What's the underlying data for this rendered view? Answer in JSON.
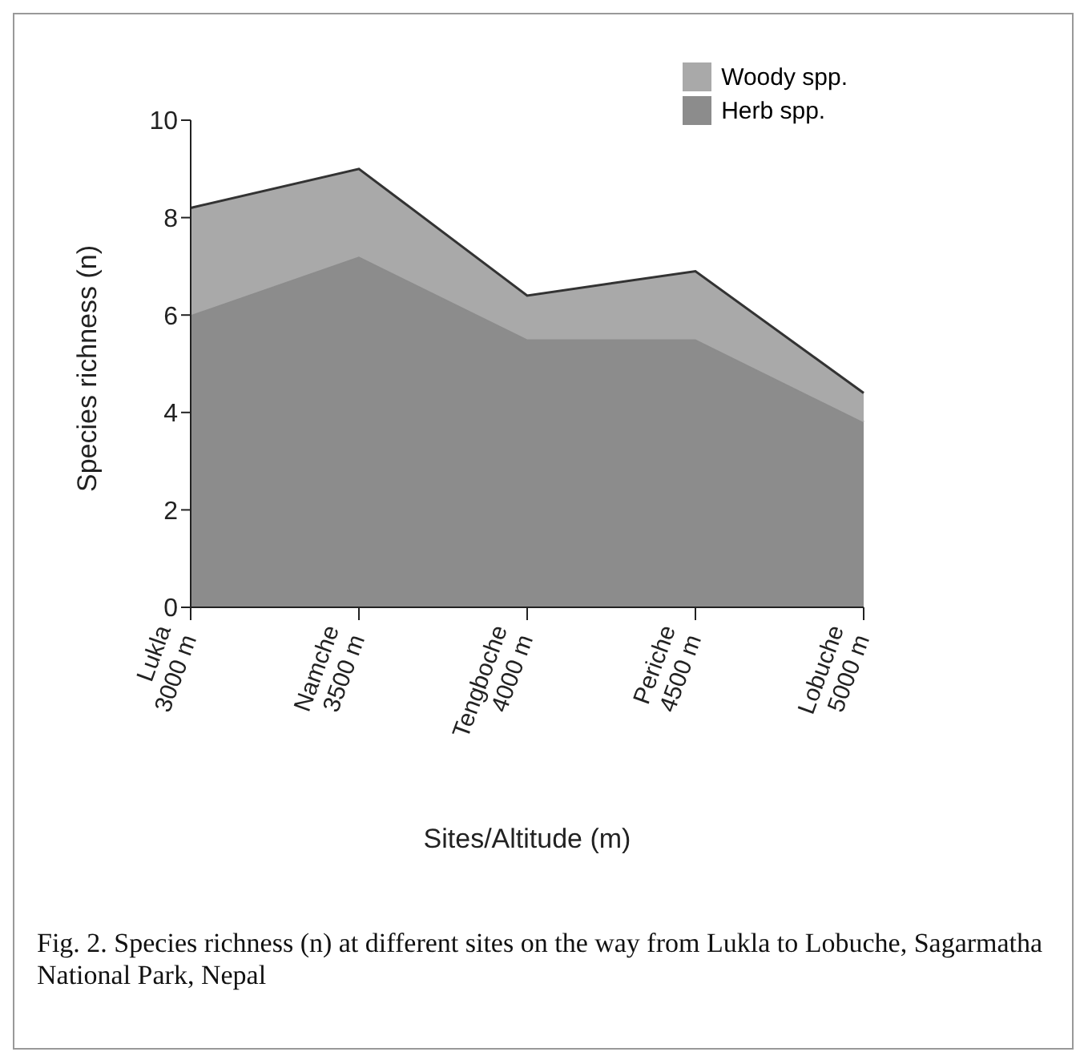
{
  "chart_data": {
    "type": "area",
    "stacked": true,
    "xlabel": "Sites/Altitude (m)",
    "ylabel": "Species richness (n)",
    "categories": [
      "Lukla\n3000 m",
      "Namche\n3500 m",
      "Tengboche\n4000 m",
      "Periche\n4500 m",
      "Lobuche\n5000 m"
    ],
    "series": [
      {
        "name": "Herb spp.",
        "color": "#8c8c8c",
        "values": [
          6,
          7.2,
          5.5,
          5.5,
          3.8
        ]
      },
      {
        "name": "Woody spp.",
        "color": "#a9a9a9",
        "values": [
          2.2,
          1.8,
          0.9,
          1.4,
          0.6
        ]
      }
    ],
    "ylim": [
      0,
      10
    ],
    "yticks": [
      0,
      2,
      4,
      6,
      8,
      10
    ],
    "grid": false,
    "legend": "top right",
    "annotations": [
      "Fig. 2. Species richness (n) at different sites on the way from Lukla to Lobuche, Sagarmatha National Park, Nepal"
    ]
  }
}
